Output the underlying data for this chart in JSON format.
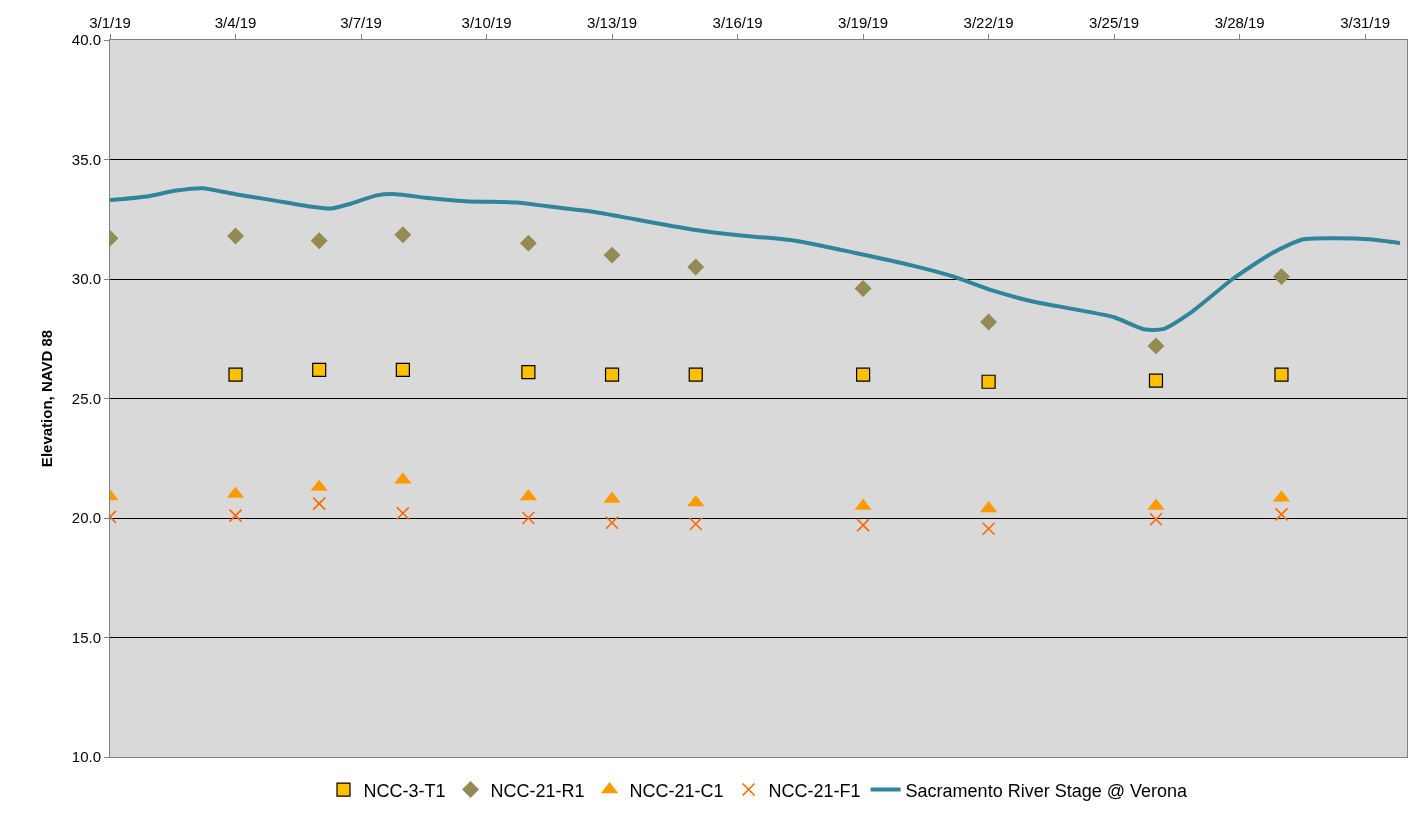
{
  "chart_data": {
    "type": "scatter",
    "ylabel": "Elevation, NAVD 88",
    "xlim": [
      "--03-01",
      "--04-01"
    ],
    "xticks": [
      {
        "value": "--03-01",
        "label": "3/1/19"
      },
      {
        "value": "--03-04",
        "label": "3/4/19"
      },
      {
        "value": "--03-07",
        "label": "3/7/19"
      },
      {
        "value": "--03-10",
        "label": "3/10/19"
      },
      {
        "value": "--03-13",
        "label": "3/13/19"
      },
      {
        "value": "--03-16",
        "label": "3/16/19"
      },
      {
        "value": "--03-19",
        "label": "3/19/19"
      },
      {
        "value": "--03-22",
        "label": "3/22/19"
      },
      {
        "value": "--03-25",
        "label": "3/25/19"
      },
      {
        "value": "--03-28",
        "label": "3/28/19"
      },
      {
        "value": "--03-31",
        "label": "3/31/19"
      }
    ],
    "ylim": [
      10,
      40
    ],
    "yticks": [
      {
        "value": 10,
        "label": "10.0"
      },
      {
        "value": 15,
        "label": "15.0"
      },
      {
        "value": 20,
        "label": "20.0"
      },
      {
        "value": 25,
        "label": "25.0"
      },
      {
        "value": 30,
        "label": "30.0"
      },
      {
        "value": 35,
        "label": "35.0"
      },
      {
        "value": 40,
        "label": "40.0"
      }
    ],
    "grid": "y",
    "legend": "bottom",
    "series": [
      {
        "name": "NCC-3-T1",
        "color": "#ffc000",
        "marker": "square",
        "x": [
          "--03-04",
          "--03-06",
          "--03-08",
          "--03-11",
          "--03-13",
          "--03-15",
          "--03-19",
          "--03-22",
          "--03-26",
          "--03-29"
        ],
        "values": [
          26.0,
          26.2,
          26.2,
          26.1,
          26.0,
          26.0,
          26.0,
          25.7,
          25.75,
          26.0
        ]
      },
      {
        "name": "NCC-21-R1",
        "color": "#948a54",
        "marker": "diamond",
        "x": [
          "--03-01",
          "--03-04",
          "--03-06",
          "--03-08",
          "--03-11",
          "--03-13",
          "--03-15",
          "--03-19",
          "--03-22",
          "--03-26",
          "--03-29"
        ],
        "values": [
          31.7,
          31.8,
          31.6,
          31.85,
          31.5,
          31.0,
          30.5,
          29.6,
          28.2,
          27.2,
          30.1
        ]
      },
      {
        "name": "NCC-21-C1",
        "color": "#ff9900",
        "marker": "triangle",
        "x": [
          "--03-01",
          "--03-04",
          "--03-06",
          "--03-08",
          "--03-11",
          "--03-13",
          "--03-15",
          "--03-19",
          "--03-22",
          "--03-26",
          "--03-29"
        ],
        "values": [
          20.9,
          21.0,
          21.3,
          21.6,
          20.9,
          20.8,
          20.65,
          20.5,
          20.4,
          20.5,
          20.85
        ]
      },
      {
        "name": "NCC-21-F1",
        "color": "#ff6600",
        "marker": "cross",
        "x": [
          "--03-01",
          "--03-04",
          "--03-06",
          "--03-08",
          "--03-11",
          "--03-13",
          "--03-15",
          "--03-19",
          "--03-22",
          "--03-26",
          "--03-29"
        ],
        "values": [
          20.05,
          20.1,
          20.6,
          20.2,
          20.0,
          19.8,
          19.75,
          19.7,
          19.55,
          19.95,
          20.15
        ]
      },
      {
        "name": "Sacramento River Stage @ Verona",
        "type": "line",
        "color": "#31849b",
        "x": [
          "--03-01T00:00",
          "--03-01T21:00",
          "--03-02T14:00",
          "--03-03T05:00",
          "--03-04T00:00",
          "--03-04T21:00",
          "--03-05T17:00",
          "--03-06T07:00",
          "--03-06T18:00",
          "--03-07T09:00",
          "--03-07T20:00",
          "--03-08T13:00",
          "--03-09T12:00",
          "--03-10T17:00",
          "--03-11T10:00",
          "--03-12T14:00",
          "--03-13T13:00",
          "--03-15T00:00",
          "--03-15T22:00",
          "--03-17T09:00",
          "--03-18T19:00",
          "--03-20T05:00",
          "--03-21T04:00",
          "--03-22T03:00",
          "--03-23T02:00",
          "--03-24T00:00",
          "--03-25T00:00",
          "--03-25T17:00",
          "--03-26T04:00",
          "--03-26T21:00",
          "--03-27T20:00",
          "--03-28T19:00",
          "--03-29T12:00",
          "--03-30T05:00",
          "--03-31T04:00",
          "--03-31T20:00"
        ],
        "values": [
          33.3,
          33.45,
          33.7,
          33.8,
          33.55,
          33.3,
          33.05,
          32.95,
          33.15,
          33.5,
          33.55,
          33.4,
          33.25,
          33.2,
          33.05,
          32.8,
          32.5,
          32.05,
          31.85,
          31.6,
          31.1,
          30.55,
          30.1,
          29.5,
          29.05,
          28.75,
          28.4,
          27.9,
          27.9,
          28.65,
          30.0,
          31.1,
          31.65,
          31.7,
          31.65,
          31.5
        ]
      }
    ]
  }
}
